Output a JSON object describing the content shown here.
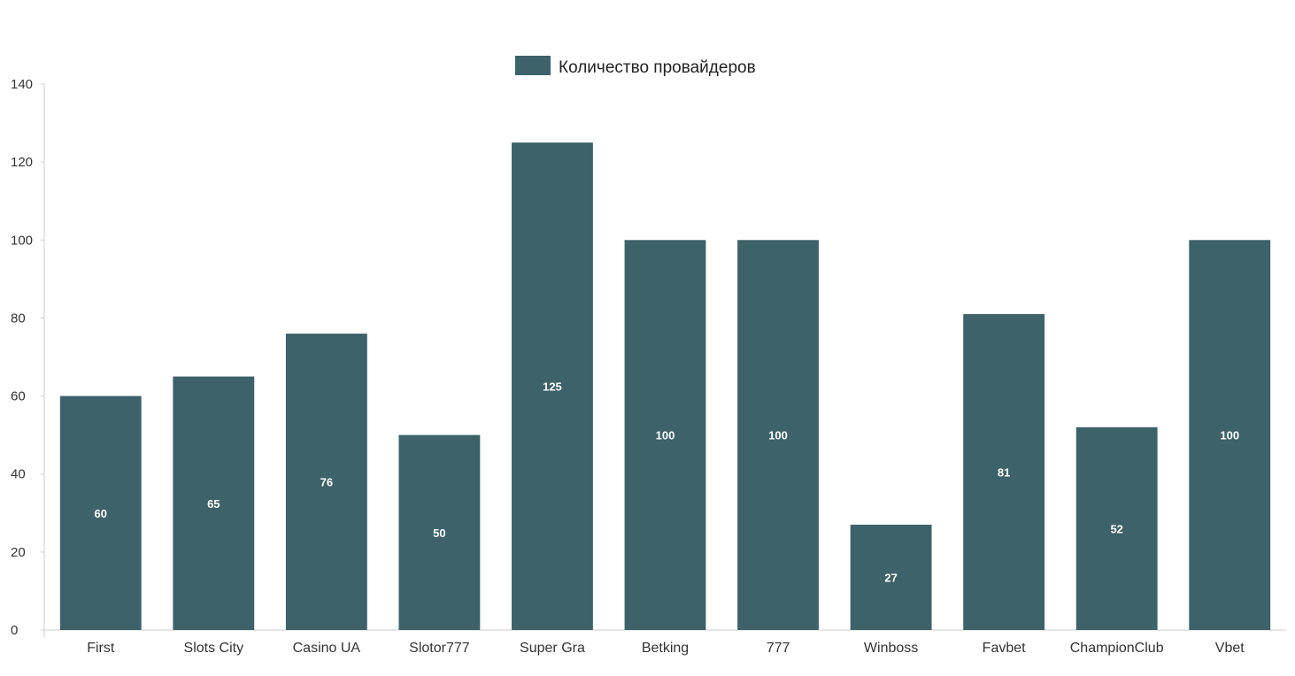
{
  "chart_data": {
    "type": "bar",
    "categories": [
      "First",
      "Slots City",
      "Casino UA",
      "Slotor777",
      "Super Gra",
      "Betking",
      "777",
      "Winboss",
      "Favbet",
      "ChampionClub",
      "Vbet"
    ],
    "series": [
      {
        "name": "Количество провайдеров",
        "values": [
          60,
          65,
          76,
          50,
          125,
          100,
          100,
          27,
          81,
          52,
          100
        ],
        "color": "#3d6269"
      }
    ],
    "ylim": [
      0,
      140
    ],
    "yticks": [
      0,
      20,
      40,
      60,
      80,
      100,
      120,
      140
    ],
    "legend_position": "top-center",
    "grid": false
  }
}
